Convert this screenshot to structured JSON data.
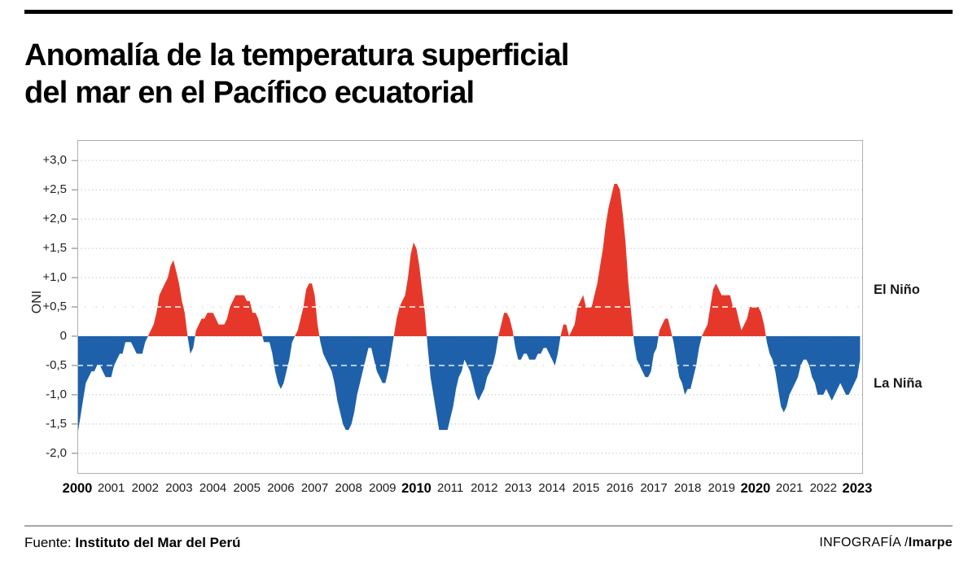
{
  "header": {
    "title_line1": "Anomalía de la temperatura superficial",
    "title_line2": "del mar en el Pacífico ecuatorial"
  },
  "footer": {
    "source_label": "Fuente:",
    "source_value": "Instituto del Mar del Perú",
    "credit_label": "INFOGRAFÍA /",
    "credit_value": "Imarpe"
  },
  "chart_data": {
    "type": "area",
    "title": "Anomalía de la temperatura superficial del mar en el Pacífico ecuatorial",
    "xlabel": "",
    "ylabel": "ONI",
    "x_range": [
      2000,
      2023.17
    ],
    "y_range": [
      -2.35,
      3.35
    ],
    "grid": true,
    "legend_position": "right-annotations",
    "colors": {
      "positive": "#e6382a",
      "negative": "#1e61aa"
    },
    "dashed_levels": [
      0.5,
      -0.5
    ],
    "yticks": [
      {
        "v": 3.0,
        "label": "+3,0"
      },
      {
        "v": 2.5,
        "label": "+2,5"
      },
      {
        "v": 2.0,
        "label": "+2,0"
      },
      {
        "v": 1.5,
        "label": "+1,5"
      },
      {
        "v": 1.0,
        "label": "+1,0"
      },
      {
        "v": 0.5,
        "label": "+0,5"
      },
      {
        "v": 0.0,
        "label": "0"
      },
      {
        "v": -0.5,
        "label": "-0,5"
      },
      {
        "v": -1.0,
        "label": "-1,0"
      },
      {
        "v": -1.5,
        "label": "-1,5"
      },
      {
        "v": -2.0,
        "label": "-2,0"
      }
    ],
    "xticks": [
      {
        "v": 2000,
        "label": "2000",
        "bold": true
      },
      {
        "v": 2001,
        "label": "2001",
        "bold": false
      },
      {
        "v": 2002,
        "label": "2002",
        "bold": false
      },
      {
        "v": 2003,
        "label": "2003",
        "bold": false
      },
      {
        "v": 2004,
        "label": "2004",
        "bold": false
      },
      {
        "v": 2005,
        "label": "2005",
        "bold": false
      },
      {
        "v": 2006,
        "label": "2006",
        "bold": false
      },
      {
        "v": 2007,
        "label": "2007",
        "bold": false
      },
      {
        "v": 2008,
        "label": "2008",
        "bold": false
      },
      {
        "v": 2009,
        "label": "2009",
        "bold": false
      },
      {
        "v": 2010,
        "label": "2010",
        "bold": true
      },
      {
        "v": 2011,
        "label": "2011",
        "bold": false
      },
      {
        "v": 2012,
        "label": "2012",
        "bold": false
      },
      {
        "v": 2013,
        "label": "2013",
        "bold": false
      },
      {
        "v": 2014,
        "label": "2014",
        "bold": false
      },
      {
        "v": 2015,
        "label": "2015",
        "bold": false
      },
      {
        "v": 2016,
        "label": "2016",
        "bold": false
      },
      {
        "v": 2017,
        "label": "2017",
        "bold": false
      },
      {
        "v": 2018,
        "label": "2018",
        "bold": false
      },
      {
        "v": 2019,
        "label": "2019",
        "bold": false
      },
      {
        "v": 2020,
        "label": "2020",
        "bold": true
      },
      {
        "v": 2021,
        "label": "2021",
        "bold": false
      },
      {
        "v": 2022,
        "label": "2022",
        "bold": false
      },
      {
        "v": 2023,
        "label": "2023",
        "bold": true
      }
    ],
    "annotations": [
      {
        "text": "El Niño",
        "y": 0.78
      },
      {
        "text": "La Niña",
        "y": -0.82
      }
    ],
    "series": [
      {
        "name": "ONI",
        "start_year": 2000,
        "step_months": 1,
        "monthly_values": [
          -1.7,
          -1.4,
          -1.1,
          -0.8,
          -0.7,
          -0.6,
          -0.6,
          -0.5,
          -0.5,
          -0.6,
          -0.7,
          -0.7,
          -0.7,
          -0.5,
          -0.4,
          -0.3,
          -0.3,
          -0.1,
          -0.1,
          -0.1,
          -0.2,
          -0.3,
          -0.3,
          -0.3,
          -0.1,
          0.0,
          0.1,
          0.2,
          0.4,
          0.7,
          0.8,
          0.9,
          1.0,
          1.2,
          1.3,
          1.1,
          0.9,
          0.6,
          0.4,
          0.0,
          -0.3,
          -0.2,
          0.1,
          0.2,
          0.3,
          0.3,
          0.4,
          0.4,
          0.4,
          0.3,
          0.2,
          0.2,
          0.2,
          0.3,
          0.5,
          0.6,
          0.7,
          0.7,
          0.7,
          0.7,
          0.6,
          0.6,
          0.4,
          0.4,
          0.3,
          0.1,
          -0.1,
          -0.1,
          -0.1,
          -0.3,
          -0.6,
          -0.8,
          -0.9,
          -0.8,
          -0.6,
          -0.4,
          -0.1,
          0.0,
          0.1,
          0.3,
          0.5,
          0.8,
          0.9,
          0.9,
          0.7,
          0.2,
          -0.1,
          -0.3,
          -0.4,
          -0.5,
          -0.6,
          -0.8,
          -1.1,
          -1.3,
          -1.5,
          -1.6,
          -1.6,
          -1.5,
          -1.3,
          -1.0,
          -0.8,
          -0.6,
          -0.4,
          -0.2,
          -0.2,
          -0.4,
          -0.6,
          -0.7,
          -0.8,
          -0.8,
          -0.6,
          -0.3,
          0.0,
          0.3,
          0.5,
          0.6,
          0.7,
          1.0,
          1.4,
          1.6,
          1.5,
          1.2,
          0.8,
          0.4,
          -0.2,
          -0.7,
          -1.0,
          -1.3,
          -1.6,
          -1.6,
          -1.6,
          -1.6,
          -1.4,
          -1.2,
          -0.9,
          -0.7,
          -0.6,
          -0.4,
          -0.5,
          -0.6,
          -0.8,
          -1.0,
          -1.1,
          -1.0,
          -0.9,
          -0.7,
          -0.6,
          -0.5,
          -0.3,
          0.0,
          0.2,
          0.4,
          0.4,
          0.3,
          0.1,
          -0.2,
          -0.4,
          -0.4,
          -0.3,
          -0.3,
          -0.4,
          -0.4,
          -0.4,
          -0.3,
          -0.3,
          -0.2,
          -0.2,
          -0.3,
          -0.4,
          -0.5,
          -0.3,
          0.0,
          0.2,
          0.2,
          0.0,
          0.1,
          0.2,
          0.5,
          0.6,
          0.7,
          0.5,
          0.5,
          0.5,
          0.7,
          0.9,
          1.2,
          1.5,
          1.9,
          2.2,
          2.4,
          2.6,
          2.6,
          2.5,
          2.1,
          1.6,
          0.9,
          0.4,
          -0.1,
          -0.4,
          -0.5,
          -0.6,
          -0.7,
          -0.7,
          -0.6,
          -0.3,
          -0.2,
          0.1,
          0.2,
          0.3,
          0.3,
          0.1,
          -0.1,
          -0.4,
          -0.7,
          -0.8,
          -1.0,
          -0.9,
          -0.9,
          -0.7,
          -0.5,
          -0.2,
          0.0,
          0.1,
          0.2,
          0.5,
          0.8,
          0.9,
          0.8,
          0.7,
          0.7,
          0.7,
          0.7,
          0.5,
          0.5,
          0.3,
          0.1,
          0.2,
          0.3,
          0.5,
          0.5,
          0.5,
          0.5,
          0.4,
          0.2,
          -0.1,
          -0.3,
          -0.4,
          -0.6,
          -0.9,
          -1.2,
          -1.3,
          -1.2,
          -1.0,
          -0.9,
          -0.8,
          -0.7,
          -0.5,
          -0.4,
          -0.4,
          -0.5,
          -0.7,
          -0.8,
          -1.0,
          -1.0,
          -1.0,
          -0.9,
          -1.0,
          -1.1,
          -1.0,
          -0.9,
          -0.8,
          -0.9,
          -1.0,
          -1.0,
          -0.9,
          -0.8,
          -0.7,
          -0.4
        ]
      }
    ]
  }
}
